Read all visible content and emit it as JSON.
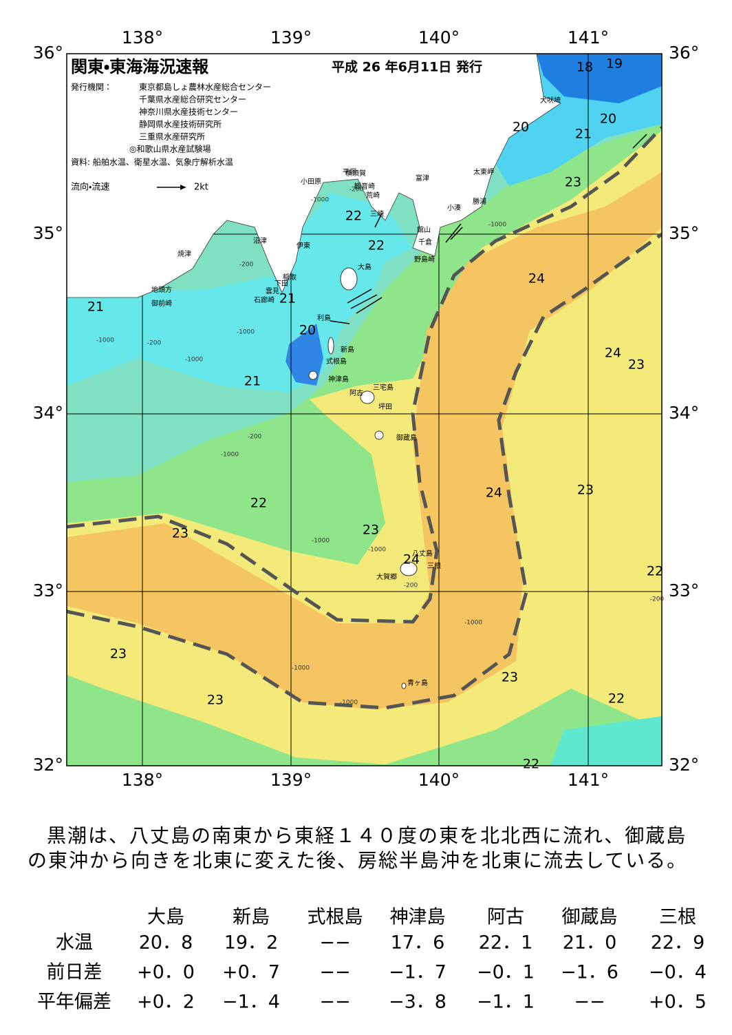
{
  "map": {
    "title": "関東・東海海況速報",
    "date": "平成 26 年6月11日 発行",
    "issuers_label": "発行機関：",
    "issuers": [
      "東京都島しょ農林水産総合センター",
      "千葉県水産総合研究センター",
      "神奈川県水産技術センター",
      "静岡県水産技術研究所",
      "三重県水産研究所",
      "◎和歌山県水産試験場"
    ],
    "sources": "資料: 船舶水温、衛星水温、気象庁解析水温",
    "legend_label": "流向・流速",
    "legend_scale": "2kt",
    "lon_labels": [
      "138°",
      "139°",
      "140°",
      "141°"
    ],
    "lat_labels": [
      "36°",
      "35°",
      "34°",
      "33°",
      "32°"
    ],
    "place_names": [
      "犬吠埼",
      "太東岬",
      "勝浦",
      "小湊",
      "館山",
      "千倉",
      "野島崎",
      "富津",
      "横須賀",
      "観音崎",
      "荒崎",
      "三崎",
      "平塚",
      "小田原",
      "沼津",
      "伊東",
      "焼津",
      "稲取",
      "下田",
      "雲見",
      "石廊崎",
      "地頭方",
      "御前崎",
      "大島",
      "利島",
      "新島",
      "式根島",
      "神津島",
      "三宅島",
      "阿古",
      "坪田",
      "御蔵島",
      "八丈島",
      "三根",
      "大賀郷",
      "青ヶ島"
    ],
    "contour_labels": [
      "18",
      "19",
      "20",
      "20",
      "21",
      "23",
      "22",
      "22",
      "24",
      "21",
      "21",
      "20",
      "21",
      "24",
      "23",
      "24",
      "23",
      "22",
      "23",
      "23",
      "24",
      "22",
      "23",
      "23",
      "23",
      "22",
      "22"
    ],
    "depth_labels": [
      "-200",
      "-1000",
      "-200",
      "-1000",
      "-200",
      "-1000",
      "-1000",
      "-200",
      "-1000",
      "-1000",
      "-1000",
      "-200",
      "-1000",
      "-1000",
      "-1000",
      "-200",
      "-1000"
    ]
  },
  "summary": "黒潮は、八丈島の南東から東経１４０度の東を北北西に流れ、御蔵島の東沖から向きを北東に変えた後、房総半島沖を北東に流去している。",
  "table": {
    "columns": [
      "大島",
      "新島",
      "式根島",
      "神津島",
      "阿古",
      "御蔵島",
      "三根"
    ],
    "rows": [
      {
        "label": "水温",
        "values": [
          "20．8",
          "19．2",
          "−−",
          "17．6",
          "22．1",
          "21．0",
          "22．9"
        ]
      },
      {
        "label": "前日差",
        "values": [
          "+0．0",
          "+0．7",
          "−−",
          "−1．7",
          "−0．1",
          "−1．6",
          "−0．4"
        ]
      },
      {
        "label": "平年偏差",
        "values": [
          "+0．2",
          "−1．4",
          "−−",
          "−3．8",
          "−1．1",
          "−−",
          "+0．5"
        ]
      }
    ]
  }
}
